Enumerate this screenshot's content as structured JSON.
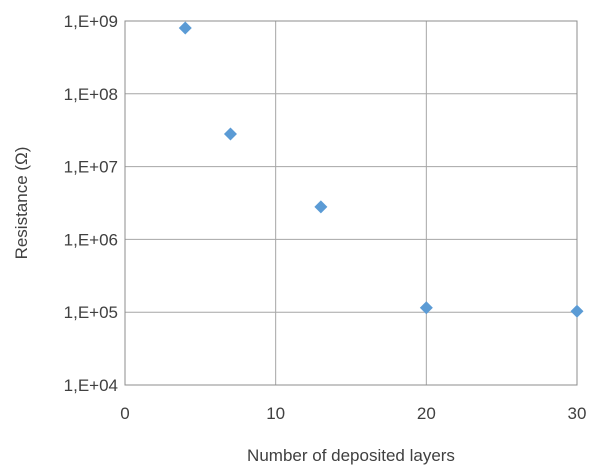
{
  "chart_data": {
    "type": "scatter",
    "title": "",
    "xlabel": "Number of deposited layers",
    "ylabel": "Resistance (Ω)",
    "xlim": [
      0,
      30
    ],
    "ylim": [
      10000,
      1000000000
    ],
    "yscale": "log",
    "grid": true,
    "legend": "none",
    "x_ticks": [
      0,
      10,
      20,
      30
    ],
    "x_tick_labels": [
      "0",
      "10",
      "20",
      "30"
    ],
    "y_ticks": [
      10000,
      100000,
      1000000,
      10000000,
      100000000,
      1000000000
    ],
    "y_tick_labels": [
      "1,E+04",
      "1,E+05",
      "1,E+06",
      "1,E+07",
      "1,E+08",
      "1,E+09"
    ],
    "marker": "diamond",
    "marker_color": "#5b9bd5",
    "series": [
      {
        "x": [
          4,
          7,
          13,
          20,
          30
        ],
        "y": [
          800000000,
          28000000,
          2800000,
          115000,
          103000
        ]
      }
    ]
  }
}
